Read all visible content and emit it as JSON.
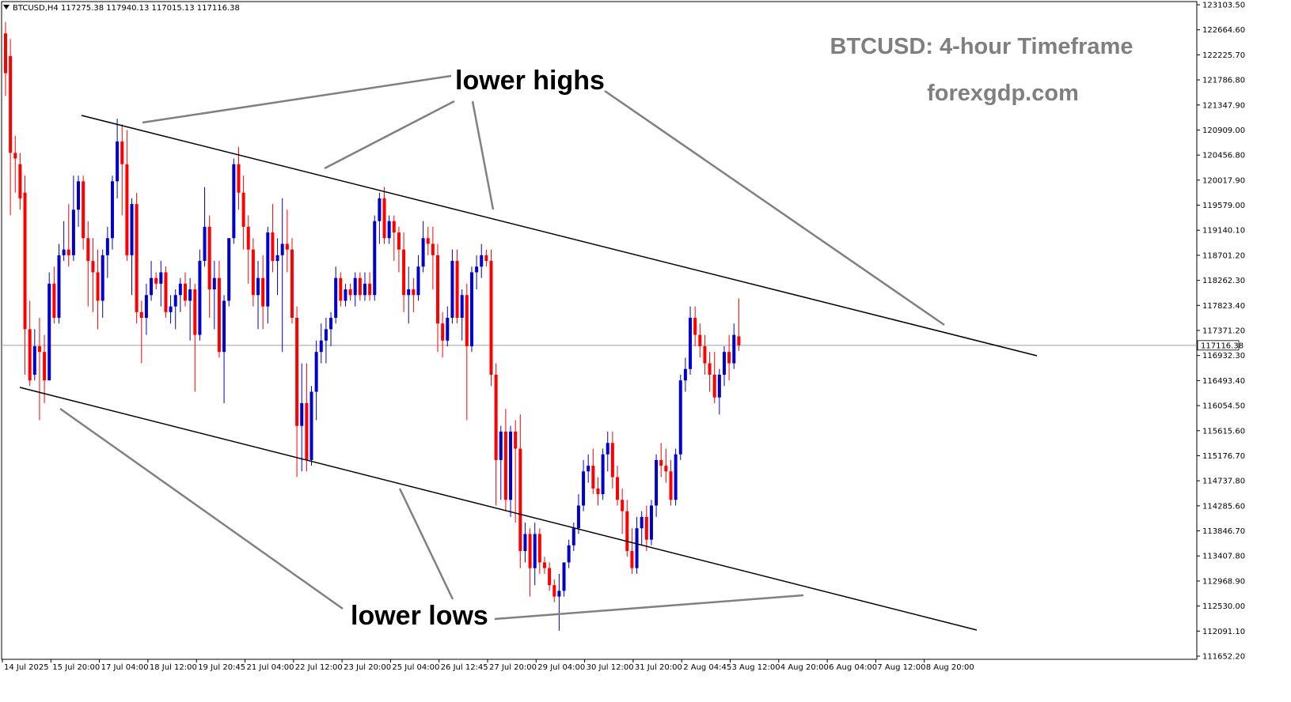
{
  "header": {
    "symbol_label": "BTCUSD,H4",
    "ohlc_label": "117275.38 117940.13 117015.13 117116.38"
  },
  "overlay": {
    "title": "BTCUSD: 4-hour Timeframe",
    "website": "forexgdp.com"
  },
  "annotations": {
    "lower_highs": "lower highs",
    "lower_lows": "lower lows"
  },
  "colors": {
    "bull": "#0000cc",
    "bear": "#ff0000",
    "trendline": "#000000",
    "pointer": "#808080",
    "price_line": "#a0a0a0",
    "title": "#7f7f7f"
  },
  "chart_data": {
    "type": "candlestick",
    "symbol": "BTCUSD",
    "timeframe": "H4",
    "y_axis_ticks": [
      "123103.50",
      "122664.60",
      "122225.70",
      "121786.80",
      "121347.90",
      "120909.00",
      "120456.80",
      "120017.90",
      "119579.00",
      "119140.10",
      "118701.20",
      "118262.30",
      "117823.40",
      "117371.20",
      "116932.30",
      "116493.40",
      "116054.50",
      "115615.60",
      "115176.70",
      "114737.80",
      "114285.60",
      "113846.70",
      "113407.80",
      "112968.90",
      "112530.00",
      "112091.10",
      "111652.20"
    ],
    "ylim": [
      111652.2,
      123103.5
    ],
    "x_axis_ticks": [
      "14 Jul 2025",
      "15 Jul 20:00",
      "17 Jul 04:00",
      "18 Jul 12:00",
      "19 Jul 20:45",
      "21 Jul 04:00",
      "22 Jul 12:00",
      "23 Jul 20:00",
      "25 Jul 04:00",
      "26 Jul 12:45",
      "27 Jul 20:00",
      "29 Jul 04:00",
      "30 Jul 12:00",
      "31 Jul 20:00",
      "2 Aug 04:45",
      "3 Aug 12:00",
      "4 Aug 20:00",
      "6 Aug 04:00",
      "7 Aug 12:00",
      "8 Aug 20:00"
    ],
    "current_price": "117116.38",
    "candles": [
      {
        "o": 122600,
        "h": 122800,
        "l": 121500,
        "c": 121900
      },
      {
        "o": 122200,
        "h": 122500,
        "l": 119400,
        "c": 120500
      },
      {
        "o": 120500,
        "h": 120800,
        "l": 119800,
        "c": 120400
      },
      {
        "o": 120300,
        "h": 120500,
        "l": 119500,
        "c": 119700
      },
      {
        "o": 119800,
        "h": 120100,
        "l": 116600,
        "c": 117400
      },
      {
        "o": 117400,
        "h": 117900,
        "l": 116400,
        "c": 116500
      },
      {
        "o": 116600,
        "h": 117400,
        "l": 116500,
        "c": 117100
      },
      {
        "o": 117100,
        "h": 117600,
        "l": 115800,
        "c": 117000
      },
      {
        "o": 117000,
        "h": 117300,
        "l": 116100,
        "c": 116500
      },
      {
        "o": 116500,
        "h": 118400,
        "l": 116500,
        "c": 118200
      },
      {
        "o": 118200,
        "h": 118500,
        "l": 117500,
        "c": 117600
      },
      {
        "o": 117600,
        "h": 118900,
        "l": 117500,
        "c": 118700
      },
      {
        "o": 118700,
        "h": 119300,
        "l": 118600,
        "c": 118800
      },
      {
        "o": 118800,
        "h": 119600,
        "l": 118500,
        "c": 118700
      },
      {
        "o": 118700,
        "h": 120100,
        "l": 118600,
        "c": 119500
      },
      {
        "o": 119500,
        "h": 120100,
        "l": 119200,
        "c": 120000
      },
      {
        "o": 120000,
        "h": 120100,
        "l": 118800,
        "c": 119000
      },
      {
        "o": 119000,
        "h": 119300,
        "l": 117800,
        "c": 118600
      },
      {
        "o": 118600,
        "h": 119000,
        "l": 117700,
        "c": 118400
      },
      {
        "o": 118400,
        "h": 118800,
        "l": 117400,
        "c": 117900
      },
      {
        "o": 117900,
        "h": 118800,
        "l": 117600,
        "c": 118700
      },
      {
        "o": 118700,
        "h": 119200,
        "l": 118300,
        "c": 119000
      },
      {
        "o": 119000,
        "h": 120100,
        "l": 118800,
        "c": 120000
      },
      {
        "o": 120000,
        "h": 121100,
        "l": 119700,
        "c": 120700
      },
      {
        "o": 120700,
        "h": 121000,
        "l": 119400,
        "c": 120300
      },
      {
        "o": 120300,
        "h": 120900,
        "l": 118600,
        "c": 118700
      },
      {
        "o": 118700,
        "h": 119700,
        "l": 118000,
        "c": 119600
      },
      {
        "o": 119600,
        "h": 119800,
        "l": 117500,
        "c": 117700
      },
      {
        "o": 117700,
        "h": 117900,
        "l": 116800,
        "c": 117600
      },
      {
        "o": 117600,
        "h": 118200,
        "l": 117300,
        "c": 118000
      },
      {
        "o": 118000,
        "h": 118600,
        "l": 117900,
        "c": 118300
      },
      {
        "o": 118300,
        "h": 118400,
        "l": 118100,
        "c": 118200
      },
      {
        "o": 118200,
        "h": 118600,
        "l": 117800,
        "c": 118400
      },
      {
        "o": 118400,
        "h": 118500,
        "l": 117600,
        "c": 117700
      },
      {
        "o": 117700,
        "h": 118000,
        "l": 117500,
        "c": 117800
      },
      {
        "o": 117800,
        "h": 118100,
        "l": 117400,
        "c": 118000
      },
      {
        "o": 118000,
        "h": 118300,
        "l": 117700,
        "c": 118200
      },
      {
        "o": 118200,
        "h": 118400,
        "l": 117800,
        "c": 117900
      },
      {
        "o": 117900,
        "h": 118300,
        "l": 117200,
        "c": 118100
      },
      {
        "o": 118100,
        "h": 118200,
        "l": 116300,
        "c": 117300
      },
      {
        "o": 117300,
        "h": 118800,
        "l": 117200,
        "c": 118600
      },
      {
        "o": 118600,
        "h": 119900,
        "l": 118500,
        "c": 119200
      },
      {
        "o": 119200,
        "h": 119400,
        "l": 117600,
        "c": 118100
      },
      {
        "o": 118100,
        "h": 118600,
        "l": 117400,
        "c": 118300
      },
      {
        "o": 118300,
        "h": 118600,
        "l": 116900,
        "c": 117000
      },
      {
        "o": 117000,
        "h": 118000,
        "l": 116100,
        "c": 117900
      },
      {
        "o": 117900,
        "h": 119000,
        "l": 117800,
        "c": 119000
      },
      {
        "o": 119000,
        "h": 120400,
        "l": 118900,
        "c": 120300
      },
      {
        "o": 120300,
        "h": 120600,
        "l": 119500,
        "c": 119800
      },
      {
        "o": 119800,
        "h": 120100,
        "l": 118800,
        "c": 119200
      },
      {
        "o": 119200,
        "h": 119400,
        "l": 118200,
        "c": 118800
      },
      {
        "o": 118800,
        "h": 119000,
        "l": 117800,
        "c": 118000
      },
      {
        "o": 118000,
        "h": 118600,
        "l": 117400,
        "c": 118300
      },
      {
        "o": 118300,
        "h": 118700,
        "l": 117400,
        "c": 117800
      },
      {
        "o": 117800,
        "h": 119200,
        "l": 117500,
        "c": 119100
      },
      {
        "o": 119100,
        "h": 119600,
        "l": 118400,
        "c": 118600
      },
      {
        "o": 118600,
        "h": 119000,
        "l": 118000,
        "c": 118700
      },
      {
        "o": 118700,
        "h": 119700,
        "l": 117000,
        "c": 118900
      },
      {
        "o": 118900,
        "h": 119500,
        "l": 118400,
        "c": 118800
      },
      {
        "o": 118800,
        "h": 119000,
        "l": 117500,
        "c": 117600
      },
      {
        "o": 117600,
        "h": 117800,
        "l": 114800,
        "c": 115700
      },
      {
        "o": 115700,
        "h": 116800,
        "l": 114900,
        "c": 116100
      },
      {
        "o": 116100,
        "h": 116800,
        "l": 114900,
        "c": 115100
      },
      {
        "o": 115100,
        "h": 116400,
        "l": 115000,
        "c": 116300
      },
      {
        "o": 116300,
        "h": 117200,
        "l": 115800,
        "c": 117000
      },
      {
        "o": 117000,
        "h": 117500,
        "l": 116800,
        "c": 117200
      },
      {
        "o": 117200,
        "h": 117600,
        "l": 116800,
        "c": 117400
      },
      {
        "o": 117400,
        "h": 117700,
        "l": 117100,
        "c": 117600
      },
      {
        "o": 117600,
        "h": 118500,
        "l": 117500,
        "c": 118300
      },
      {
        "o": 118300,
        "h": 118400,
        "l": 117800,
        "c": 117900
      },
      {
        "o": 117900,
        "h": 118200,
        "l": 117800,
        "c": 118100
      },
      {
        "o": 118100,
        "h": 118200,
        "l": 117900,
        "c": 118000
      },
      {
        "o": 118000,
        "h": 118400,
        "l": 117800,
        "c": 118300
      },
      {
        "o": 118300,
        "h": 118400,
        "l": 117900,
        "c": 118000
      },
      {
        "o": 118000,
        "h": 118400,
        "l": 117900,
        "c": 118200
      },
      {
        "o": 118200,
        "h": 118400,
        "l": 117900,
        "c": 118000
      },
      {
        "o": 118000,
        "h": 119400,
        "l": 117900,
        "c": 119300
      },
      {
        "o": 119300,
        "h": 119800,
        "l": 118900,
        "c": 119700
      },
      {
        "o": 119700,
        "h": 119900,
        "l": 118900,
        "c": 119000
      },
      {
        "o": 119000,
        "h": 119400,
        "l": 118900,
        "c": 119300
      },
      {
        "o": 119300,
        "h": 119400,
        "l": 118600,
        "c": 119100
      },
      {
        "o": 119100,
        "h": 119200,
        "l": 118400,
        "c": 118800
      },
      {
        "o": 118800,
        "h": 119100,
        "l": 117700,
        "c": 118000
      },
      {
        "o": 118000,
        "h": 118500,
        "l": 117500,
        "c": 118100
      },
      {
        "o": 118100,
        "h": 118300,
        "l": 117700,
        "c": 118000
      },
      {
        "o": 118000,
        "h": 118700,
        "l": 117900,
        "c": 118500
      },
      {
        "o": 118500,
        "h": 119300,
        "l": 118400,
        "c": 119000
      },
      {
        "o": 119000,
        "h": 119200,
        "l": 118700,
        "c": 118900
      },
      {
        "o": 118900,
        "h": 119200,
        "l": 118100,
        "c": 118700
      },
      {
        "o": 118700,
        "h": 118900,
        "l": 117000,
        "c": 117500
      },
      {
        "o": 117500,
        "h": 117700,
        "l": 116900,
        "c": 117200
      },
      {
        "o": 117200,
        "h": 117800,
        "l": 117100,
        "c": 117600
      },
      {
        "o": 117600,
        "h": 118800,
        "l": 117500,
        "c": 118600
      },
      {
        "o": 118600,
        "h": 118800,
        "l": 117500,
        "c": 117600
      },
      {
        "o": 117600,
        "h": 118100,
        "l": 117200,
        "c": 118000
      },
      {
        "o": 118000,
        "h": 118200,
        "l": 115800,
        "c": 117100
      },
      {
        "o": 117100,
        "h": 118500,
        "l": 117000,
        "c": 118400
      },
      {
        "o": 118400,
        "h": 118700,
        "l": 118100,
        "c": 118500
      },
      {
        "o": 118500,
        "h": 118900,
        "l": 118300,
        "c": 118700
      },
      {
        "o": 118700,
        "h": 118800,
        "l": 118500,
        "c": 118600
      },
      {
        "o": 118600,
        "h": 118800,
        "l": 116400,
        "c": 116600
      },
      {
        "o": 116600,
        "h": 116800,
        "l": 114300,
        "c": 115100
      },
      {
        "o": 115100,
        "h": 115700,
        "l": 114400,
        "c": 115600
      },
      {
        "o": 115600,
        "h": 116000,
        "l": 114200,
        "c": 114400
      },
      {
        "o": 114400,
        "h": 115700,
        "l": 114100,
        "c": 115600
      },
      {
        "o": 115600,
        "h": 115800,
        "l": 114000,
        "c": 115300
      },
      {
        "o": 115300,
        "h": 115900,
        "l": 113200,
        "c": 113500
      },
      {
        "o": 113500,
        "h": 114000,
        "l": 113300,
        "c": 113800
      },
      {
        "o": 113800,
        "h": 113900,
        "l": 112700,
        "c": 113200
      },
      {
        "o": 113200,
        "h": 114000,
        "l": 112900,
        "c": 113800
      },
      {
        "o": 113800,
        "h": 113900,
        "l": 113100,
        "c": 113300
      },
      {
        "o": 113300,
        "h": 113400,
        "l": 113100,
        "c": 113200
      },
      {
        "o": 113200,
        "h": 113300,
        "l": 112800,
        "c": 112900
      },
      {
        "o": 112900,
        "h": 113000,
        "l": 112600,
        "c": 112700
      },
      {
        "o": 112700,
        "h": 113100,
        "l": 112100,
        "c": 112800
      },
      {
        "o": 112800,
        "h": 113300,
        "l": 112700,
        "c": 113300
      },
      {
        "o": 113300,
        "h": 113700,
        "l": 113200,
        "c": 113600
      },
      {
        "o": 113600,
        "h": 114000,
        "l": 113500,
        "c": 113900
      },
      {
        "o": 113900,
        "h": 114500,
        "l": 113800,
        "c": 114300
      },
      {
        "o": 114300,
        "h": 115100,
        "l": 114200,
        "c": 114900
      },
      {
        "o": 114900,
        "h": 115200,
        "l": 114700,
        "c": 115000
      },
      {
        "o": 115000,
        "h": 115300,
        "l": 114500,
        "c": 114600
      },
      {
        "o": 114600,
        "h": 114800,
        "l": 114300,
        "c": 114500
      },
      {
        "o": 114500,
        "h": 115300,
        "l": 114400,
        "c": 115200
      },
      {
        "o": 115200,
        "h": 115600,
        "l": 114900,
        "c": 115400
      },
      {
        "o": 115400,
        "h": 115600,
        "l": 114600,
        "c": 114800
      },
      {
        "o": 114800,
        "h": 115000,
        "l": 114300,
        "c": 114400
      },
      {
        "o": 114400,
        "h": 114600,
        "l": 113800,
        "c": 114200
      },
      {
        "o": 114200,
        "h": 114400,
        "l": 113400,
        "c": 113500
      },
      {
        "o": 113500,
        "h": 113900,
        "l": 113100,
        "c": 113200
      },
      {
        "o": 113200,
        "h": 114100,
        "l": 113100,
        "c": 113900
      },
      {
        "o": 113900,
        "h": 114200,
        "l": 113600,
        "c": 114100
      },
      {
        "o": 114100,
        "h": 114300,
        "l": 113500,
        "c": 113700
      },
      {
        "o": 113700,
        "h": 114400,
        "l": 113600,
        "c": 114300
      },
      {
        "o": 114300,
        "h": 115200,
        "l": 114100,
        "c": 115100
      },
      {
        "o": 115100,
        "h": 115400,
        "l": 114800,
        "c": 115000
      },
      {
        "o": 115000,
        "h": 115300,
        "l": 114700,
        "c": 114900
      },
      {
        "o": 114900,
        "h": 115100,
        "l": 114300,
        "c": 114400
      },
      {
        "o": 114400,
        "h": 115300,
        "l": 114300,
        "c": 115200
      },
      {
        "o": 115200,
        "h": 116600,
        "l": 115100,
        "c": 116500
      },
      {
        "o": 116500,
        "h": 116900,
        "l": 116300,
        "c": 116700
      },
      {
        "o": 116700,
        "h": 117800,
        "l": 116600,
        "c": 117600
      },
      {
        "o": 117600,
        "h": 117800,
        "l": 117100,
        "c": 117300
      },
      {
        "o": 117300,
        "h": 117500,
        "l": 116900,
        "c": 117100
      },
      {
        "o": 117100,
        "h": 117300,
        "l": 116600,
        "c": 116800
      },
      {
        "o": 116800,
        "h": 117000,
        "l": 116300,
        "c": 116600
      },
      {
        "o": 116600,
        "h": 117000,
        "l": 116100,
        "c": 116200
      },
      {
        "o": 116200,
        "h": 116700,
        "l": 115900,
        "c": 116600
      },
      {
        "o": 116600,
        "h": 117100,
        "l": 116400,
        "c": 117000
      },
      {
        "o": 117000,
        "h": 117300,
        "l": 116500,
        "c": 116800
      },
      {
        "o": 116800,
        "h": 117500,
        "l": 116700,
        "c": 117300
      },
      {
        "o": 117275.38,
        "h": 117940.13,
        "l": 117015.13,
        "c": 117116.38
      }
    ]
  }
}
